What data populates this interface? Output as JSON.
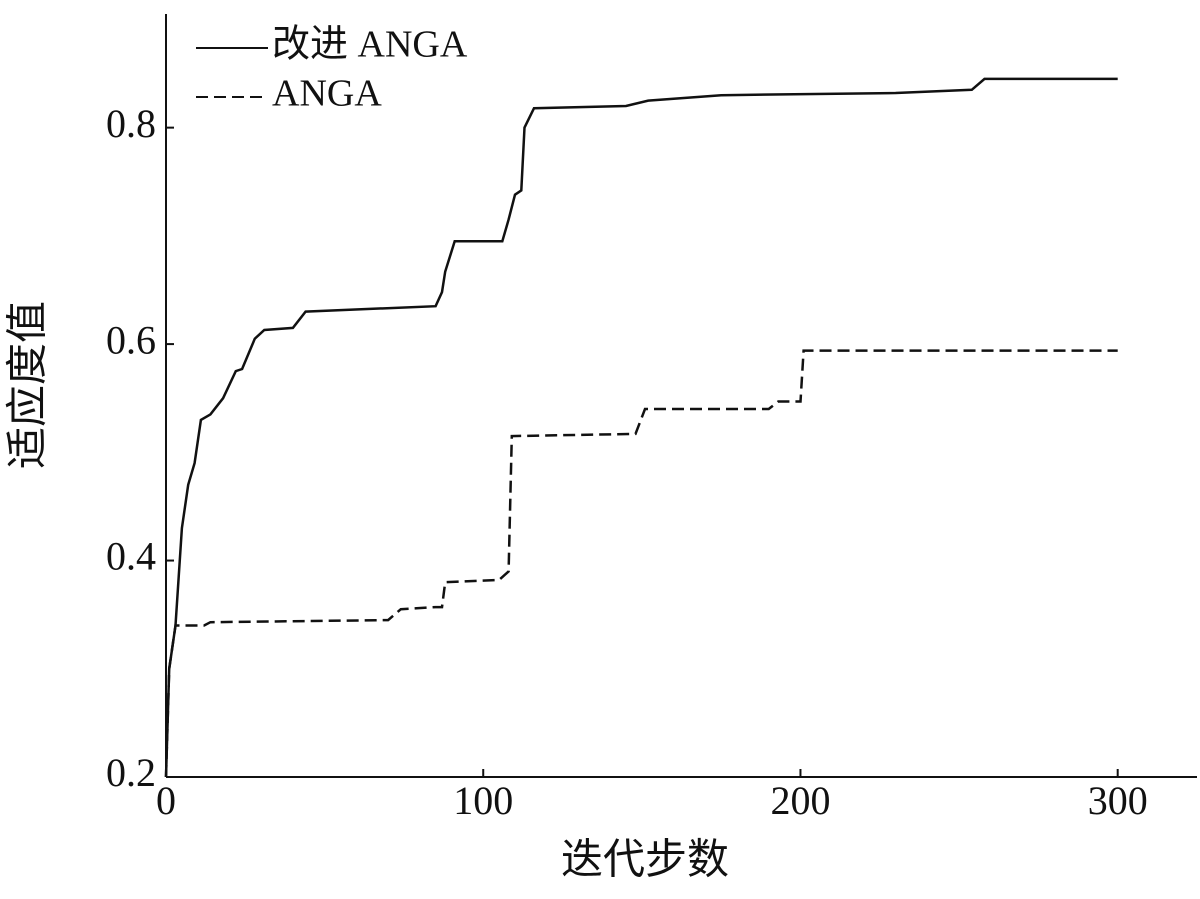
{
  "chart_data": {
    "type": "line",
    "xlabel": "迭代步数",
    "ylabel": "适应度值",
    "xlim": [
      0,
      325
    ],
    "ylim": [
      0.2,
      0.905
    ],
    "xticks": [
      0,
      100,
      200,
      300
    ],
    "yticks": [
      0.2,
      0.4,
      0.6,
      0.8
    ],
    "series": [
      {
        "name": "改进 ANGA",
        "color": "#111111",
        "dash": "solid",
        "x": [
          0,
          1,
          3,
          5,
          7,
          9,
          11,
          14,
          18,
          22,
          24,
          28,
          31,
          40,
          44,
          85,
          87,
          88,
          91,
          106,
          108,
          110,
          112,
          113,
          116,
          145,
          152,
          175,
          230,
          254,
          258,
          300
        ],
        "values": [
          0.2,
          0.3,
          0.34,
          0.43,
          0.47,
          0.49,
          0.53,
          0.535,
          0.55,
          0.575,
          0.577,
          0.605,
          0.613,
          0.615,
          0.63,
          0.635,
          0.648,
          0.667,
          0.695,
          0.695,
          0.715,
          0.738,
          0.742,
          0.8,
          0.818,
          0.82,
          0.825,
          0.83,
          0.832,
          0.835,
          0.845,
          0.845
        ]
      },
      {
        "name": "ANGA",
        "color": "#111111",
        "dash": "dashed",
        "x": [
          0,
          1,
          3,
          12,
          14,
          70,
          74,
          85,
          87,
          88,
          105,
          108,
          109,
          148,
          151,
          190,
          193,
          200,
          201,
          300
        ],
        "values": [
          0.2,
          0.3,
          0.34,
          0.34,
          0.343,
          0.345,
          0.355,
          0.357,
          0.357,
          0.38,
          0.382,
          0.39,
          0.515,
          0.517,
          0.54,
          0.54,
          0.547,
          0.547,
          0.594,
          0.594
        ]
      }
    ]
  }
}
